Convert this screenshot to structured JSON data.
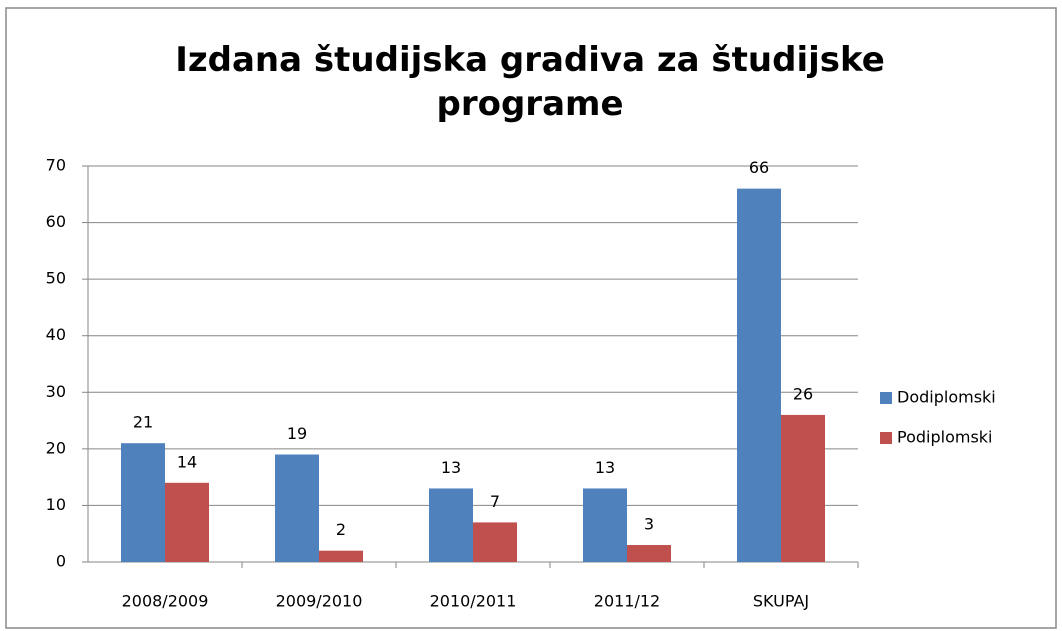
{
  "chart_data": {
    "type": "bar",
    "title": "Izdana študijska gradiva za študijske programe",
    "categories": [
      "2008/2009",
      "2009/2010",
      "2010/2011",
      "2011/12",
      "SKUPAJ"
    ],
    "series": [
      {
        "name": "Dodiplomski",
        "color": "#4f81bd",
        "values": [
          21,
          19,
          13,
          13,
          66
        ]
      },
      {
        "name": "Podiplomski",
        "color": "#c0504d",
        "values": [
          14,
          2,
          7,
          3,
          26
        ]
      }
    ],
    "ylim": [
      0,
      70
    ],
    "yticks": [
      0,
      10,
      20,
      30,
      40,
      50,
      60,
      70
    ],
    "grid": true,
    "legend": "right"
  }
}
